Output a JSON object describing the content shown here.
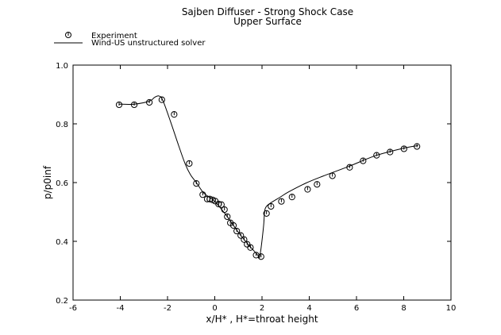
{
  "chart_data": {
    "type": "line",
    "title": "Sajben Diffuser - Strong Shock Case",
    "subtitle": "Upper Surface",
    "xlabel": "x/H* , H*=throat height",
    "ylabel": "p/p0inf",
    "xlim": [
      -6,
      10
    ],
    "ylim": [
      0.2,
      1.0
    ],
    "xticks": [
      "-6",
      "-4",
      "-2",
      "0",
      "2",
      "4",
      "6",
      "8",
      "10"
    ],
    "yticks": [
      "0.2",
      "0.4",
      "0.6",
      "0.8",
      "1.0"
    ],
    "grid": false,
    "legend_position": "top-left",
    "series": [
      {
        "name": "Experiment",
        "style": "markers",
        "x": [
          -4.05,
          -3.41,
          -2.77,
          -2.24,
          -1.72,
          -1.08,
          -0.78,
          -0.51,
          -0.32,
          -0.21,
          -0.09,
          0.02,
          0.16,
          0.28,
          0.41,
          0.53,
          0.66,
          0.79,
          0.93,
          1.1,
          1.24,
          1.37,
          1.51,
          1.75,
          1.96,
          2.19,
          2.38,
          2.82,
          3.27,
          3.93,
          4.33,
          4.98,
          5.71,
          6.28,
          6.85,
          7.42,
          8.01,
          8.56
        ],
        "y": [
          0.865,
          0.865,
          0.873,
          0.882,
          0.832,
          0.665,
          0.597,
          0.559,
          0.544,
          0.544,
          0.541,
          0.537,
          0.527,
          0.525,
          0.508,
          0.484,
          0.463,
          0.454,
          0.435,
          0.42,
          0.406,
          0.39,
          0.379,
          0.353,
          0.348,
          0.495,
          0.519,
          0.536,
          0.551,
          0.577,
          0.594,
          0.623,
          0.652,
          0.674,
          0.693,
          0.704,
          0.715,
          0.723
        ]
      },
      {
        "name": "Wind-US unstructured solver",
        "style": "line",
        "x": [
          -4.05,
          -3.41,
          -2.77,
          -2.55,
          -2.37,
          -2.2,
          -1.87,
          -1.53,
          -1.25,
          -1.03,
          -0.78,
          -0.46,
          -0.02,
          0.54,
          1.1,
          1.78,
          1.91,
          2.06,
          2.11,
          2.19,
          2.39,
          2.78,
          3.12,
          3.85,
          4.58,
          5.7,
          6.82,
          7.99,
          8.61
        ],
        "y": [
          0.867,
          0.867,
          0.877,
          0.89,
          0.895,
          0.88,
          0.807,
          0.726,
          0.663,
          0.627,
          0.6,
          0.564,
          0.537,
          0.483,
          0.42,
          0.357,
          0.352,
          0.447,
          0.501,
          0.519,
          0.532,
          0.551,
          0.568,
          0.598,
          0.622,
          0.656,
          0.692,
          0.717,
          0.726
        ]
      }
    ]
  }
}
